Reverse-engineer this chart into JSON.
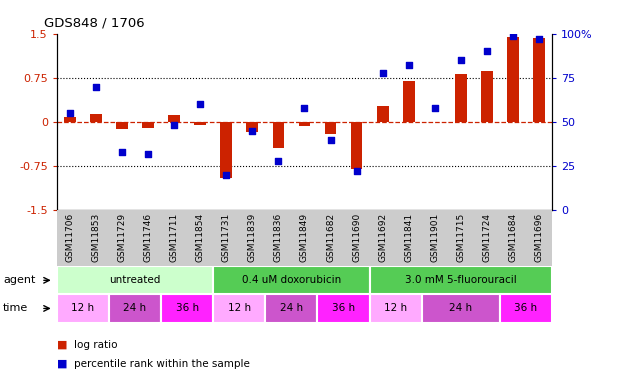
{
  "title": "GDS848 / 1706",
  "samples": [
    "GSM11706",
    "GSM11853",
    "GSM11729",
    "GSM11746",
    "GSM11711",
    "GSM11854",
    "GSM11731",
    "GSM11839",
    "GSM11836",
    "GSM11849",
    "GSM11682",
    "GSM11690",
    "GSM11692",
    "GSM11841",
    "GSM11901",
    "GSM11715",
    "GSM11724",
    "GSM11684",
    "GSM11696"
  ],
  "log_ratio": [
    0.08,
    0.13,
    -0.12,
    -0.1,
    0.12,
    -0.05,
    -0.95,
    -0.18,
    -0.45,
    -0.07,
    -0.2,
    -0.8,
    0.27,
    0.7,
    0.0,
    0.82,
    0.87,
    1.45,
    1.42
  ],
  "percentile": [
    55,
    70,
    33,
    32,
    48,
    60,
    20,
    45,
    28,
    58,
    40,
    22,
    78,
    82,
    58,
    85,
    90,
    99,
    97
  ],
  "agent_groups": [
    {
      "label": "untreated",
      "start": 0,
      "end": 6,
      "color": "#ccffcc"
    },
    {
      "label": "0.4 uM doxorubicin",
      "start": 6,
      "end": 12,
      "color": "#55cc55"
    },
    {
      "label": "3.0 mM 5-fluorouracil",
      "start": 12,
      "end": 19,
      "color": "#55cc55"
    }
  ],
  "time_groups": [
    {
      "label": "12 h",
      "start": 0,
      "end": 2,
      "color": "#ffaaff"
    },
    {
      "label": "24 h",
      "start": 2,
      "end": 4,
      "color": "#cc55cc"
    },
    {
      "label": "36 h",
      "start": 4,
      "end": 6,
      "color": "#ff22ff"
    },
    {
      "label": "12 h",
      "start": 6,
      "end": 8,
      "color": "#ffaaff"
    },
    {
      "label": "24 h",
      "start": 8,
      "end": 10,
      "color": "#cc55cc"
    },
    {
      "label": "36 h",
      "start": 10,
      "end": 12,
      "color": "#ff22ff"
    },
    {
      "label": "12 h",
      "start": 12,
      "end": 14,
      "color": "#ffaaff"
    },
    {
      "label": "24 h",
      "start": 14,
      "end": 17,
      "color": "#cc55cc"
    },
    {
      "label": "36 h",
      "start": 17,
      "end": 19,
      "color": "#ff22ff"
    }
  ],
  "bar_color": "#cc2200",
  "dot_color": "#0000cc",
  "ylim": [
    -1.5,
    1.5
  ],
  "y2lim": [
    0,
    100
  ],
  "yticks": [
    -1.5,
    -0.75,
    0,
    0.75,
    1.5
  ],
  "y2ticks": [
    0,
    25,
    50,
    75,
    100
  ],
  "hlines_dotted": [
    -0.75,
    0.75
  ],
  "background_color": "#ffffff",
  "fig_width": 6.31,
  "fig_height": 3.75,
  "dpi": 100
}
